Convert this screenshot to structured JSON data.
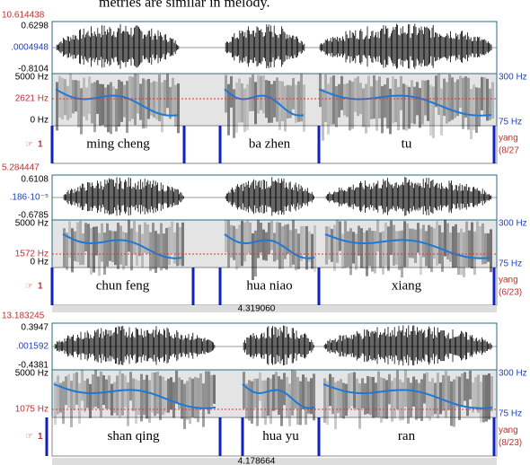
{
  "caption_fragment": "metries are similar in melody.",
  "panels": [
    {
      "time_top": "10.614438",
      "wave_max": "0.6298",
      "wave_mid": ".0004948",
      "wave_min": "-0.8104",
      "spec_max": "5000 Hz",
      "spec_mark": "2621 Hz",
      "spec_min": "0 Hz",
      "pitch_max": "300 Hz",
      "pitch_min": "75 Hz",
      "tier": "1",
      "intervals": [
        "ming cheng",
        "ba zhen",
        "tu"
      ],
      "tier_name": "yang",
      "tier_count": "(8/27"
    },
    {
      "time_top": "5.284447",
      "wave_max": "0.6108",
      "wave_mid": ".186·10⁻⁵",
      "wave_min": "-0.6785",
      "spec_max": "5000 Hz",
      "spec_mark": "1572 Hz",
      "spec_min": "0 Hz",
      "pitch_max": "300 Hz",
      "pitch_min": "75 Hz",
      "tier": "1",
      "intervals": [
        "chun feng",
        "hua niao",
        "xiang"
      ],
      "tier_name": "yang",
      "tier_count": "(6/23)",
      "time_bottom": "4.319060"
    },
    {
      "time_top": "13.183245",
      "wave_max": "0.3947",
      "wave_mid": ".001592",
      "wave_min": "-0.4381",
      "spec_max": "5000 Hz",
      "spec_mark": "1075 Hz",
      "spec_min": "",
      "pitch_max": "300 Hz",
      "pitch_min": "75 Hz",
      "tier": "1",
      "intervals": [
        "shan qing",
        "hua yu",
        "ran"
      ],
      "tier_name": "yang",
      "tier_count": "(8/23)",
      "time_bottom": "4.178664"
    }
  ]
}
